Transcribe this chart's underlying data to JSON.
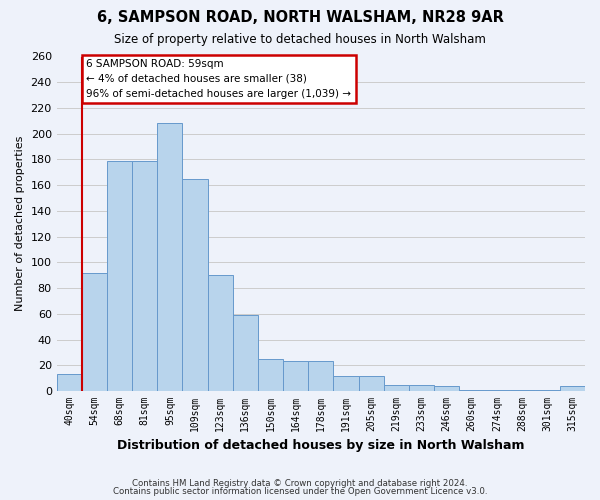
{
  "title": "6, SAMPSON ROAD, NORTH WALSHAM, NR28 9AR",
  "subtitle": "Size of property relative to detached houses in North Walsham",
  "xlabel": "Distribution of detached houses by size in North Walsham",
  "ylabel": "Number of detached properties",
  "footer_line1": "Contains HM Land Registry data © Crown copyright and database right 2024.",
  "footer_line2": "Contains public sector information licensed under the Open Government Licence v3.0.",
  "bin_labels": [
    "40sqm",
    "54sqm",
    "68sqm",
    "81sqm",
    "95sqm",
    "109sqm",
    "123sqm",
    "136sqm",
    "150sqm",
    "164sqm",
    "178sqm",
    "191sqm",
    "205sqm",
    "219sqm",
    "233sqm",
    "246sqm",
    "260sqm",
    "274sqm",
    "288sqm",
    "301sqm",
    "315sqm"
  ],
  "bar_values": [
    13,
    92,
    179,
    179,
    208,
    165,
    90,
    59,
    25,
    23,
    23,
    12,
    12,
    5,
    5,
    4,
    1,
    1,
    1,
    1,
    4
  ],
  "bar_color": "#b8d4ec",
  "bar_edge_color": "#6699cc",
  "annotation_title": "6 SAMPSON ROAD: 59sqm",
  "annotation_line2": "← 4% of detached houses are smaller (38)",
  "annotation_line3": "96% of semi-detached houses are larger (1,039) →",
  "annotation_box_color": "#ffffff",
  "annotation_border_color": "#cc0000",
  "ylim": [
    0,
    260
  ],
  "yticks": [
    0,
    20,
    40,
    60,
    80,
    100,
    120,
    140,
    160,
    180,
    200,
    220,
    240,
    260
  ],
  "vline_color": "#cc0000",
  "grid_color": "#cccccc",
  "background_color": "#eef2fa"
}
